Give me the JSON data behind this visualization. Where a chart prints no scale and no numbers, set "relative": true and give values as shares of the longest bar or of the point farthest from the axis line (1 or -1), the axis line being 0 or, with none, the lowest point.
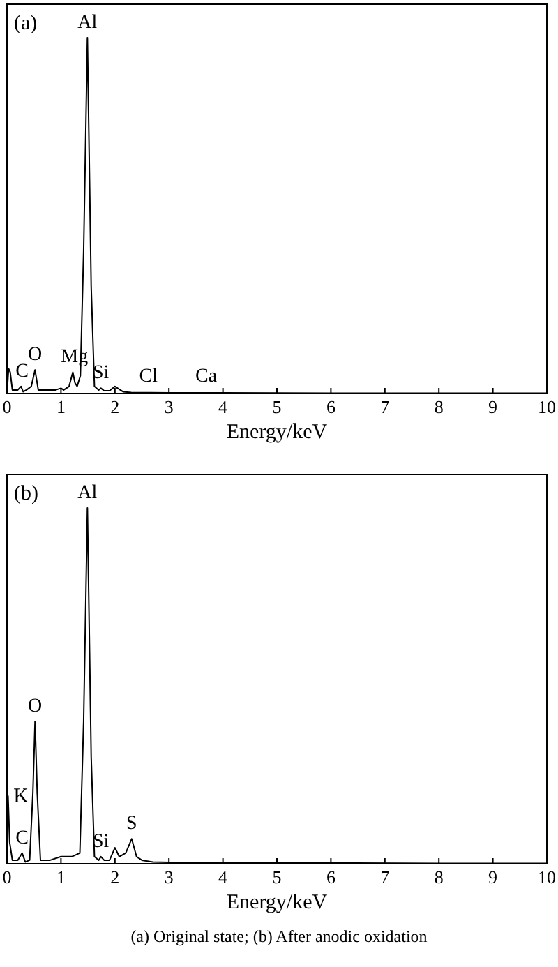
{
  "chart_data": [
    {
      "type": "line",
      "relative": true,
      "xlabel": "Energy/keV",
      "xlim": [
        0,
        10
      ],
      "xticks": [
        0,
        1,
        2,
        3,
        4,
        5,
        6,
        7,
        8,
        9,
        10
      ],
      "marker": "none",
      "line_style": "solid",
      "grid": false,
      "series": [
        {
          "color": "#000000",
          "x": [
            0,
            0.03,
            0.06,
            0.1,
            0.2,
            0.26,
            0.3,
            0.36,
            0.45,
            0.52,
            0.58,
            0.7,
            0.9,
            1.0,
            1.05,
            1.15,
            1.22,
            1.26,
            1.3,
            1.36,
            1.42,
            1.49,
            1.56,
            1.62,
            1.7,
            1.74,
            1.8,
            1.9,
            2.0,
            2.05,
            2.15,
            2.3,
            3,
            4,
            6,
            8,
            10
          ],
          "values": [
            0,
            0.07,
            0.06,
            0.01,
            0.01,
            0.02,
            0.005,
            0.01,
            0.02,
            0.066,
            0.01,
            0.01,
            0.01,
            0.015,
            0.01,
            0.02,
            0.06,
            0.03,
            0.02,
            0.05,
            0.4,
            1,
            0.3,
            0.02,
            0.01,
            0.015,
            0.008,
            0.008,
            0.02,
            0.015,
            0.005,
            0.003,
            0.002,
            0.002,
            0.001,
            0.001,
            0.001
          ]
        }
      ],
      "annotations": [
        "(a)",
        {
          "text": "Al",
          "x": 1.49,
          "y": 1
        },
        {
          "text": "C",
          "x": 0.28,
          "y": 0.02
        },
        {
          "text": "O",
          "x": 0.52,
          "y": 0.066
        },
        {
          "text": "Mg",
          "x": 1.25,
          "y": 0.06
        },
        {
          "text": "Si",
          "x": 1.74,
          "y": 0.015
        },
        {
          "text": "Cl",
          "x": 2.62,
          "y": 0.005
        },
        {
          "text": "Ca",
          "x": 3.69,
          "y": 0.005
        }
      ]
    },
    {
      "type": "line",
      "relative": true,
      "xlabel": "Energy/keV",
      "xlim": [
        0,
        10
      ],
      "xticks": [
        0,
        1,
        2,
        3,
        4,
        5,
        6,
        7,
        8,
        9,
        10
      ],
      "marker": "none",
      "line_style": "solid",
      "grid": false,
      "series": [
        {
          "color": "#000000",
          "x": [
            0,
            0.02,
            0.05,
            0.1,
            0.2,
            0.28,
            0.34,
            0.42,
            0.48,
            0.52,
            0.56,
            0.62,
            0.8,
            1.0,
            1.2,
            1.35,
            1.42,
            1.49,
            1.56,
            1.62,
            1.7,
            1.74,
            1.8,
            1.9,
            2.0,
            2.08,
            2.2,
            2.31,
            2.4,
            2.5,
            2.7,
            3,
            3.5,
            4,
            6,
            8,
            10
          ],
          "values": [
            0,
            0.19,
            0.06,
            0.01,
            0.01,
            0.03,
            0.005,
            0.01,
            0.2,
            0.4,
            0.2,
            0.01,
            0.01,
            0.02,
            0.02,
            0.03,
            0.4,
            1,
            0.3,
            0.02,
            0.01,
            0.02,
            0.01,
            0.01,
            0.045,
            0.02,
            0.03,
            0.07,
            0.02,
            0.01,
            0.005,
            0.004,
            0.003,
            0.002,
            0.002,
            0.001,
            0.001
          ]
        }
      ],
      "annotations": [
        "(b)",
        "K",
        "(a) Original state; (b) After anodic oxidation",
        {
          "text": "Al",
          "x": 1.49,
          "y": 1
        },
        {
          "text": "O",
          "x": 0.52,
          "y": 0.4
        },
        {
          "text": "C",
          "x": 0.28,
          "y": 0.03
        },
        {
          "text": "Si",
          "x": 1.74,
          "y": 0.02
        },
        {
          "text": "S",
          "x": 2.31,
          "y": 0.07
        }
      ]
    }
  ]
}
